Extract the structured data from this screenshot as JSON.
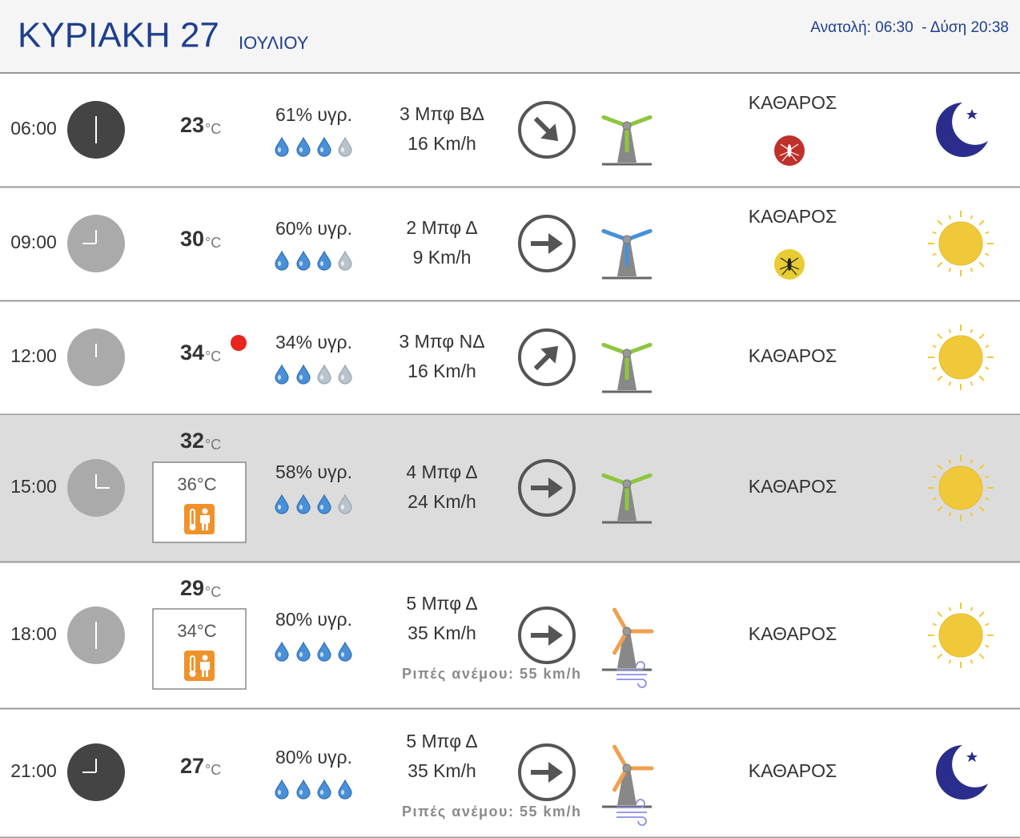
{
  "header": {
    "day": "ΚΥΡΙΑΚΗ 27",
    "month": "ΙΟΥΛΙΟΥ",
    "sun": "Ανατολή: 06:30  - Δύση 20:38"
  },
  "rows": [
    {
      "time": "06:00",
      "temperature": 23,
      "unit": "°C",
      "humidity": "61% υγρ.",
      "wind_force": "3 Μπφ ΒΔ",
      "wind_speed": "16 Km/h",
      "sky": "ΚΑΘΑΡΟΣ"
    },
    {
      "time": "09:00",
      "temperature": 30,
      "unit": "°C",
      "humidity": "60% υγρ.",
      "wind_force": "2 Μπφ Δ",
      "wind_speed": "9 Km/h",
      "sky": "ΚΑΘΑΡΟΣ"
    },
    {
      "time": "12:00",
      "temperature": 34,
      "unit": "°C",
      "humidity": "34% υγρ.",
      "wind_force": "3 Μπφ ΝΔ",
      "wind_speed": "16 Km/h",
      "sky": "ΚΑΘΑΡΟΣ"
    },
    {
      "time": "15:00",
      "temperature": 32,
      "unit": "°C",
      "feels_like": "36°C",
      "humidity": "58% υγρ.",
      "wind_force": "4 Μπφ Δ",
      "wind_speed": "24 Km/h",
      "sky": "ΚΑΘΑΡΟΣ"
    },
    {
      "time": "18:00",
      "temperature": 29,
      "unit": "°C",
      "feels_like": "34°C",
      "humidity": "80% υγρ.",
      "wind_force": "5 Μπφ Δ",
      "wind_speed": "35 Km/h",
      "gusts": "Ριπές ανέμου: 55 km/h",
      "sky": "ΚΑΘΑΡΟΣ"
    },
    {
      "time": "21:00",
      "temperature": 27,
      "unit": "°C",
      "humidity": "80% υγρ.",
      "wind_force": "5 Μπφ Δ",
      "wind_speed": "35 Km/h",
      "gusts": "Ριπές ανέμου: 55 km/h",
      "sky": "ΚΑΘΑΡΟΣ"
    }
  ]
}
